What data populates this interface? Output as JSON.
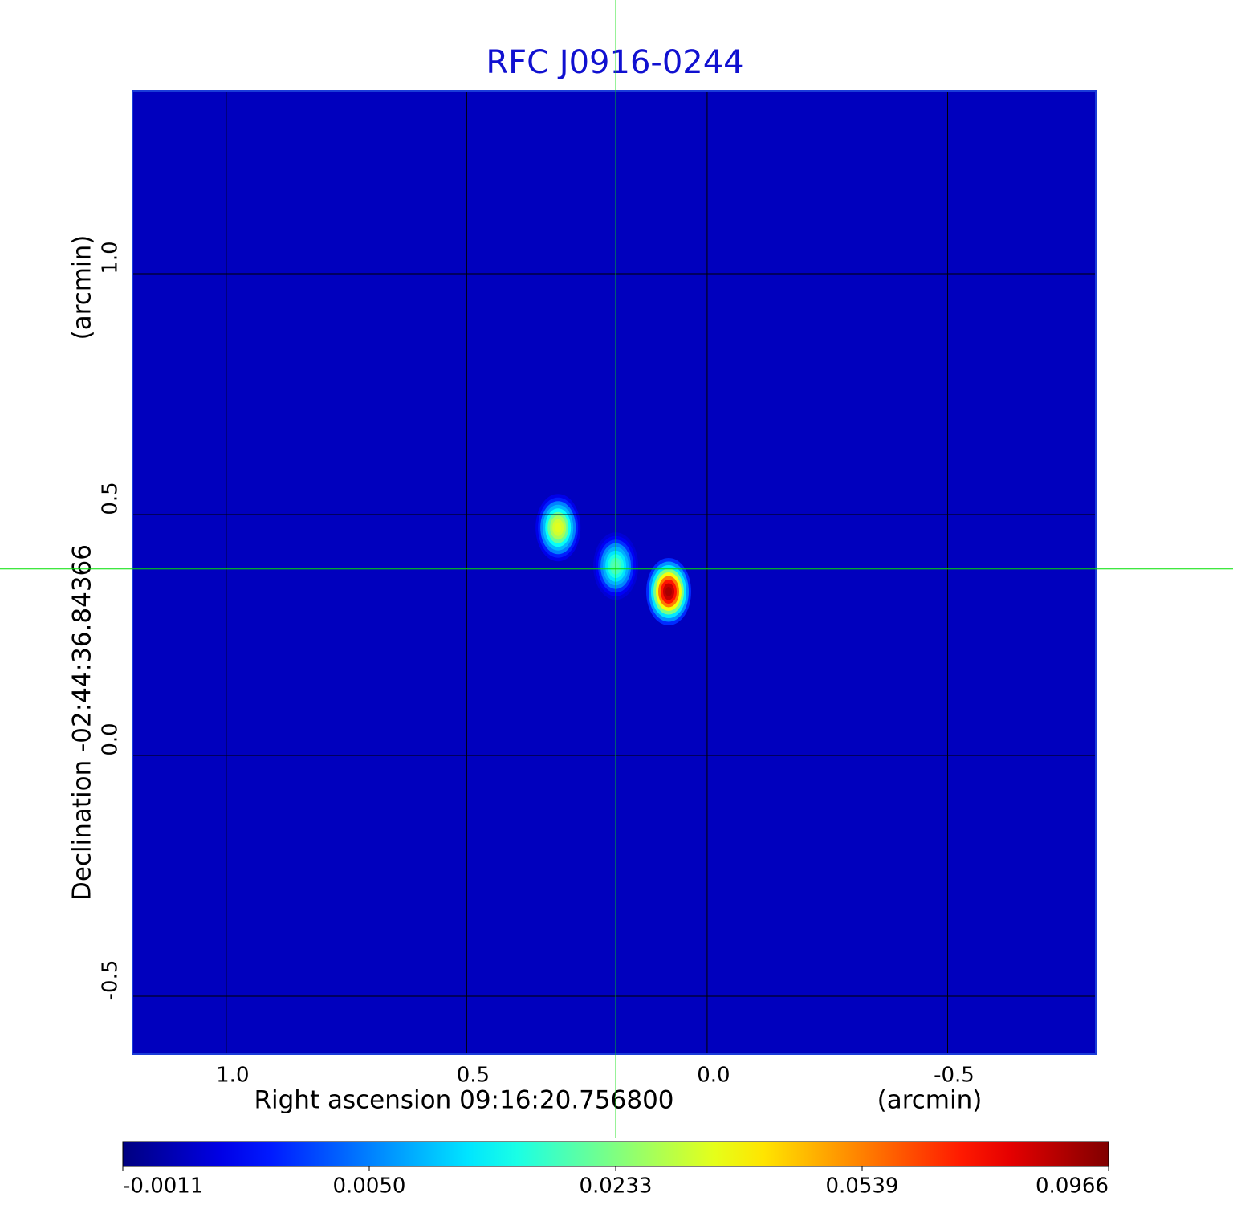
{
  "chart_data": {
    "type": "image",
    "title": "RFC J0916-0244",
    "xlabel": "Right ascension  09:16:20.756800",
    "xunit": "(arcmin)",
    "ylabel": "Declination  -02:44:36.84366",
    "yunit": "(arcmin)",
    "xlim": [
      1.195,
      -0.808
    ],
    "ylim": [
      -0.62,
      1.38
    ],
    "xticks": [
      {
        "value": 1,
        "label": "1.0"
      },
      0.5,
      {
        "value": 0,
        "label": "0.0"
      },
      -0.5
    ],
    "yticks": [
      -0.5,
      {
        "value": 0,
        "label": "0.0"
      },
      0.5,
      {
        "value": 1,
        "label": "1.0"
      }
    ],
    "grid": true,
    "background": 0.0004,
    "sources": [
      {
        "x": 0.31,
        "y": 0.473,
        "value": 0.035
      },
      {
        "x": 0.19,
        "y": 0.393,
        "value": 0.02
      },
      {
        "x": 0.08,
        "y": 0.34,
        "value": 0.09
      }
    ],
    "crosshair": {
      "x": 0.19,
      "y": 0.387,
      "color": "#00e000"
    },
    "colorbar_ticks": [
      -0.0011,
      {
        "value": 0.005,
        "label": "0.0050"
      },
      0.0233,
      0.0539,
      0.0966
    ],
    "colormap": "jet"
  }
}
